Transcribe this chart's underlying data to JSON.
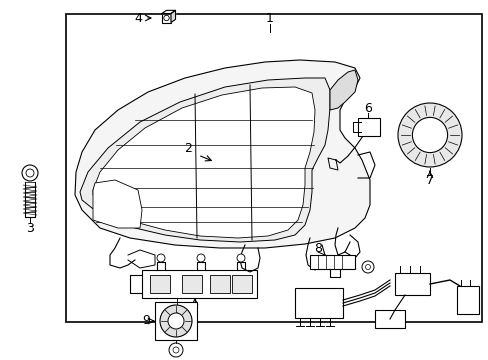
{
  "bg_color": "#ffffff",
  "border_color": "#000000",
  "line_color": "#000000",
  "fig_width": 4.89,
  "fig_height": 3.6,
  "dpi": 100,
  "border": [
    0.135,
    0.04,
    0.985,
    0.895
  ]
}
